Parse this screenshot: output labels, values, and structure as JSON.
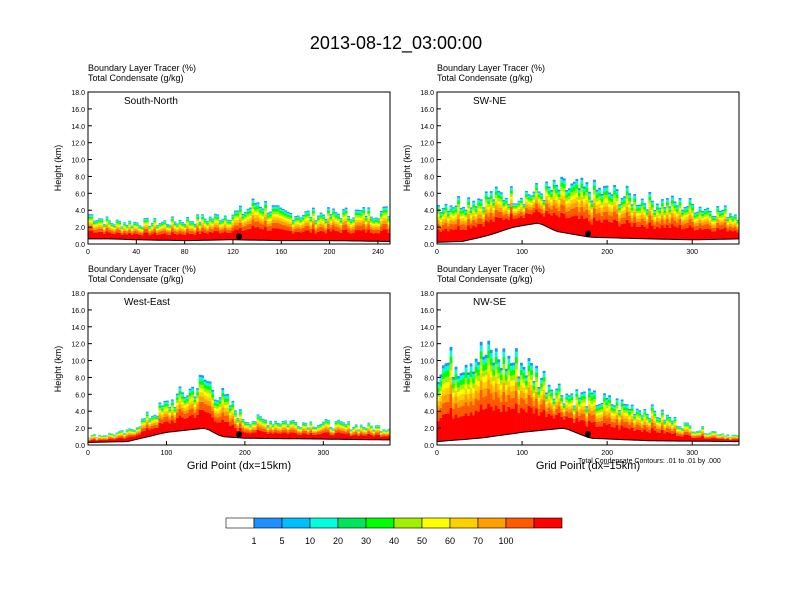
{
  "title": "2013-08-12_03:00:00",
  "note": "Total Condensate Contours: .01 to .01 by .000",
  "colorbar": {
    "labels": [
      "1",
      "5",
      "10",
      "20",
      "30",
      "40",
      "50",
      "60",
      "70",
      "100"
    ],
    "colors": [
      "#ffffff",
      "#1e90ff",
      "#00bfff",
      "#00ffdc",
      "#00e65a",
      "#00ff00",
      "#a0f000",
      "#ffff00",
      "#ffd000",
      "#ffa000",
      "#ff5a00",
      "#ff0000"
    ]
  },
  "chart_data": [
    {
      "type": "heatmap",
      "panel_label": "South-North",
      "subtitle_1": "Boundary Layer Tracer    (%)",
      "subtitle_2": "Total Condensate    (g/kg)",
      "xlabel": "",
      "ylabel": "Height (km)",
      "xlim": [
        0,
        250
      ],
      "ylim": [
        0,
        18
      ],
      "xticks": [
        "0",
        "40",
        "80",
        "120",
        "160",
        "200",
        "240"
      ],
      "yticks": [
        "0.0",
        "2.0",
        "4.0",
        "6.0",
        "8.0",
        "10.0",
        "12.0",
        "14.0",
        "16.0",
        "18.0"
      ],
      "terrain": [
        [
          0,
          0.6
        ],
        [
          20,
          0.6
        ],
        [
          40,
          0.5
        ],
        [
          80,
          0.4
        ],
        [
          120,
          0.5
        ],
        [
          160,
          0.4
        ],
        [
          200,
          0.4
        ],
        [
          250,
          0.3
        ]
      ],
      "boundary_layer_top_km": [
        [
          0,
          3.5
        ],
        [
          20,
          2.5
        ],
        [
          60,
          2.5
        ],
        [
          100,
          3.0
        ],
        [
          130,
          3.8
        ],
        [
          140,
          5.0
        ],
        [
          160,
          3.5
        ],
        [
          200,
          3.5
        ],
        [
          250,
          3.8
        ]
      ]
    },
    {
      "type": "heatmap",
      "panel_label": "SW-NE",
      "subtitle_1": "Boundary Layer Tracer    (%)",
      "subtitle_2": "Total Condensate    (g/kg)",
      "xlabel": "",
      "ylabel": "Height (km)",
      "xlim": [
        0,
        355
      ],
      "ylim": [
        0,
        18
      ],
      "xticks": [
        "0",
        "100",
        "200",
        "300"
      ],
      "yticks": [
        "0.0",
        "2.0",
        "4.0",
        "6.0",
        "8.0",
        "10.0",
        "12.0",
        "14.0",
        "16.0",
        "18.0"
      ],
      "terrain": [
        [
          0,
          0.2
        ],
        [
          30,
          0.3
        ],
        [
          60,
          1.0
        ],
        [
          90,
          2.0
        ],
        [
          120,
          2.5
        ],
        [
          140,
          1.5
        ],
        [
          180,
          0.8
        ],
        [
          250,
          0.6
        ],
        [
          300,
          0.5
        ],
        [
          355,
          0.6
        ]
      ],
      "boundary_layer_top_km": [
        [
          0,
          4.5
        ],
        [
          60,
          5.5
        ],
        [
          120,
          6.0
        ],
        [
          150,
          6.5
        ],
        [
          200,
          6.0
        ],
        [
          250,
          5.0
        ],
        [
          300,
          4.5
        ],
        [
          355,
          3.5
        ]
      ]
    },
    {
      "type": "heatmap",
      "panel_label": "West-East",
      "subtitle_1": "Boundary Layer Tracer    (%)",
      "subtitle_2": "Total Condensate    (g/kg)",
      "xlabel": "Grid Point (dx=15km)",
      "ylabel": "Height (km)",
      "xlim": [
        0,
        385
      ],
      "ylim": [
        0,
        18
      ],
      "xticks": [
        "0",
        "100",
        "200",
        "300"
      ],
      "yticks": [
        "0.0",
        "2.0",
        "4.0",
        "6.0",
        "8.0",
        "10.0",
        "12.0",
        "14.0",
        "16.0",
        "18.0"
      ],
      "terrain": [
        [
          0,
          0.3
        ],
        [
          50,
          0.4
        ],
        [
          100,
          1.5
        ],
        [
          150,
          2.0
        ],
        [
          170,
          1.0
        ],
        [
          200,
          0.8
        ],
        [
          300,
          0.7
        ],
        [
          385,
          0.6
        ]
      ],
      "boundary_layer_top_km": [
        [
          0,
          1.0
        ],
        [
          50,
          1.5
        ],
        [
          80,
          3.5
        ],
        [
          150,
          7.5
        ],
        [
          200,
          3.0
        ],
        [
          300,
          2.5
        ],
        [
          385,
          2.0
        ]
      ]
    },
    {
      "type": "heatmap",
      "panel_label": "NW-SE",
      "subtitle_1": "Boundary Layer Tracer    (%)",
      "subtitle_2": "Total Condensate    (g/kg)",
      "xlabel": "Grid Point (dx=15km)",
      "ylabel": "Height (km)",
      "xlim": [
        0,
        355
      ],
      "ylim": [
        0,
        18
      ],
      "xticks": [
        "0",
        "100",
        "200",
        "300"
      ],
      "yticks": [
        "0.0",
        "2.0",
        "4.0",
        "6.0",
        "8.0",
        "10.0",
        "12.0",
        "14.0",
        "16.0",
        "18.0"
      ],
      "terrain": [
        [
          0,
          0.4
        ],
        [
          50,
          0.8
        ],
        [
          100,
          1.5
        ],
        [
          150,
          2.0
        ],
        [
          180,
          0.8
        ],
        [
          250,
          0.5
        ],
        [
          355,
          0.4
        ]
      ],
      "boundary_layer_top_km": [
        [
          0,
          9.0
        ],
        [
          50,
          10.5
        ],
        [
          100,
          9.5
        ],
        [
          150,
          6.0
        ],
        [
          200,
          5.0
        ],
        [
          250,
          4.0
        ],
        [
          300,
          2.0
        ],
        [
          355,
          1.0
        ]
      ]
    }
  ]
}
